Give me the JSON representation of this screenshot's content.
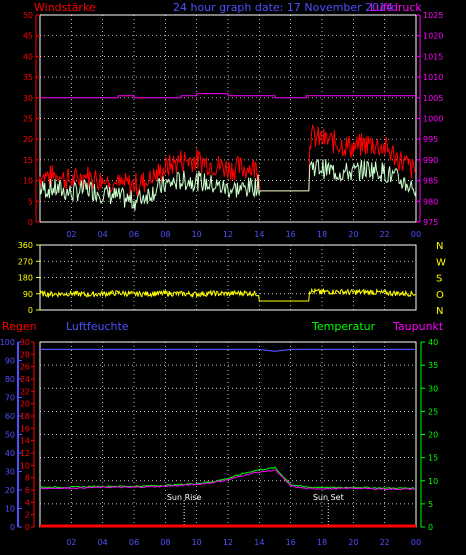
{
  "header": {
    "left_title": "Windstärke",
    "center_title": "24 hour graph date: 17 November 2014",
    "right_title": "Luftdruck"
  },
  "bottom_header": {
    "regen": "Regen",
    "luftfeuchte": "Luftfeuchte",
    "temperatur": "Temperatur",
    "taupunkt": "Taupunkt"
  },
  "colors": {
    "red": "#ff0000",
    "magenta": "#ff00ff",
    "blue": "#5050ff",
    "green": "#00ff00",
    "mint": "#ccffcc",
    "yellow": "#ffff00",
    "white": "#ffffff",
    "grid": "#ffffff"
  },
  "chart_data": [
    {
      "type": "line",
      "panel": "wind_pressure",
      "x_ticks": [
        "02",
        "04",
        "06",
        "08",
        "10",
        "12",
        "14",
        "16",
        "18",
        "20",
        "22",
        "00"
      ],
      "y_left_ticks": [
        "0",
        "5",
        "10",
        "15",
        "20",
        "25",
        "30",
        "35",
        "40",
        "45",
        "50"
      ],
      "y_right_ticks": [
        "975",
        "980",
        "985",
        "990",
        "995",
        "1000",
        "1005",
        "1010",
        "1015",
        "1020",
        "1025"
      ],
      "ylim_left": [
        0,
        50
      ],
      "ylim_right": [
        975,
        1025
      ],
      "x_hours": [
        0,
        1,
        2,
        3,
        4,
        5,
        6,
        7,
        8,
        9,
        10,
        11,
        12,
        13,
        14,
        15,
        16,
        17,
        18,
        19,
        20,
        21,
        22,
        23,
        24
      ],
      "series": [
        {
          "role": "gust",
          "color": "#ff0000",
          "values": [
            11,
            11,
            10,
            11,
            10,
            9,
            9,
            10,
            13,
            15,
            15,
            14,
            13,
            13,
            13,
            null,
            null,
            21,
            20,
            19,
            18,
            19,
            18,
            15,
            12
          ]
        },
        {
          "role": "average",
          "color": "#ccffcc",
          "values": [
            8,
            8,
            7,
            8,
            7,
            6,
            5,
            7,
            9,
            10,
            10,
            9,
            8,
            8,
            9,
            null,
            null,
            14,
            13,
            12,
            12,
            13,
            12,
            10,
            8
          ]
        },
        {
          "role": "pressure",
          "color": "#ff00ff",
          "values": [
            1005,
            1005,
            1005,
            1005,
            1005,
            1005.5,
            1005,
            1005,
            1005,
            1005.5,
            1006,
            1006,
            1005.5,
            1005.5,
            1005.5,
            1005,
            1005,
            1005.5,
            1005.5,
            1005.5,
            1005.5,
            1005.5,
            1005.5,
            1005.5,
            1005.5
          ]
        }
      ]
    },
    {
      "type": "line",
      "panel": "wind_direction",
      "y_ticks": [
        "360",
        "270",
        "180",
        "90",
        "0"
      ],
      "direction_letters": [
        "N",
        "W",
        "S",
        "O",
        "N"
      ],
      "ylim": [
        0,
        360
      ],
      "series": [
        {
          "role": "direction",
          "color": "#ffff00",
          "values": [
            90,
            88,
            92,
            85,
            90,
            95,
            88,
            90,
            92,
            90,
            88,
            92,
            90,
            95,
            90,
            null,
            null,
            105,
            100,
            102,
            98,
            100,
            95,
            92,
            90
          ]
        }
      ]
    },
    {
      "type": "line",
      "panel": "temperature_humidity_rain",
      "y_left_ticks": [
        "0",
        "2",
        "4",
        "6",
        "8",
        "10",
        "12",
        "14",
        "16",
        "18",
        "20",
        "22",
        "24",
        "26",
        "28",
        "30"
      ],
      "y_humidity_ticks": [
        "0",
        "10",
        "20",
        "30",
        "40",
        "50",
        "60",
        "70",
        "80",
        "90",
        "100"
      ],
      "y_right_ticks": [
        "0",
        "5",
        "10",
        "15",
        "20",
        "25",
        "30",
        "35",
        "40"
      ],
      "annotations": [
        "Sun Rise",
        "Sun Set"
      ],
      "series": [
        {
          "role": "humidity",
          "color": "#5050ff",
          "values": [
            96,
            96,
            96,
            96,
            96,
            96,
            96,
            96,
            96,
            96,
            96,
            96,
            96,
            96,
            96,
            95,
            96,
            96,
            96,
            96,
            96,
            96,
            96,
            96,
            96
          ]
        },
        {
          "role": "temperature",
          "color": "#00ff00",
          "values": [
            8.6,
            8.6,
            8.6,
            8.7,
            8.8,
            8.8,
            8.8,
            8.9,
            9.0,
            9.2,
            9.4,
            9.8,
            10.5,
            11.6,
            12.4,
            12.8,
            9.2,
            8.6,
            8.6,
            8.5,
            8.6,
            8.5,
            8.4,
            8.4,
            8.4
          ]
        },
        {
          "role": "dewpoint",
          "color": "#ff00ff",
          "values": [
            8.4,
            8.4,
            8.4,
            8.5,
            8.6,
            8.6,
            8.6,
            8.7,
            8.8,
            9.0,
            9.2,
            9.6,
            10.2,
            11.2,
            11.9,
            12.3,
            8.9,
            8.3,
            8.3,
            8.3,
            8.4,
            8.3,
            8.2,
            8.2,
            8.2
          ]
        },
        {
          "role": "rain",
          "color": "#ff0000",
          "values": [
            0,
            0,
            0,
            0,
            0,
            0,
            0,
            0,
            0,
            0,
            0,
            0,
            0,
            0,
            0,
            0,
            0,
            0,
            0,
            0,
            0,
            0,
            0,
            0,
            0
          ]
        }
      ]
    }
  ]
}
